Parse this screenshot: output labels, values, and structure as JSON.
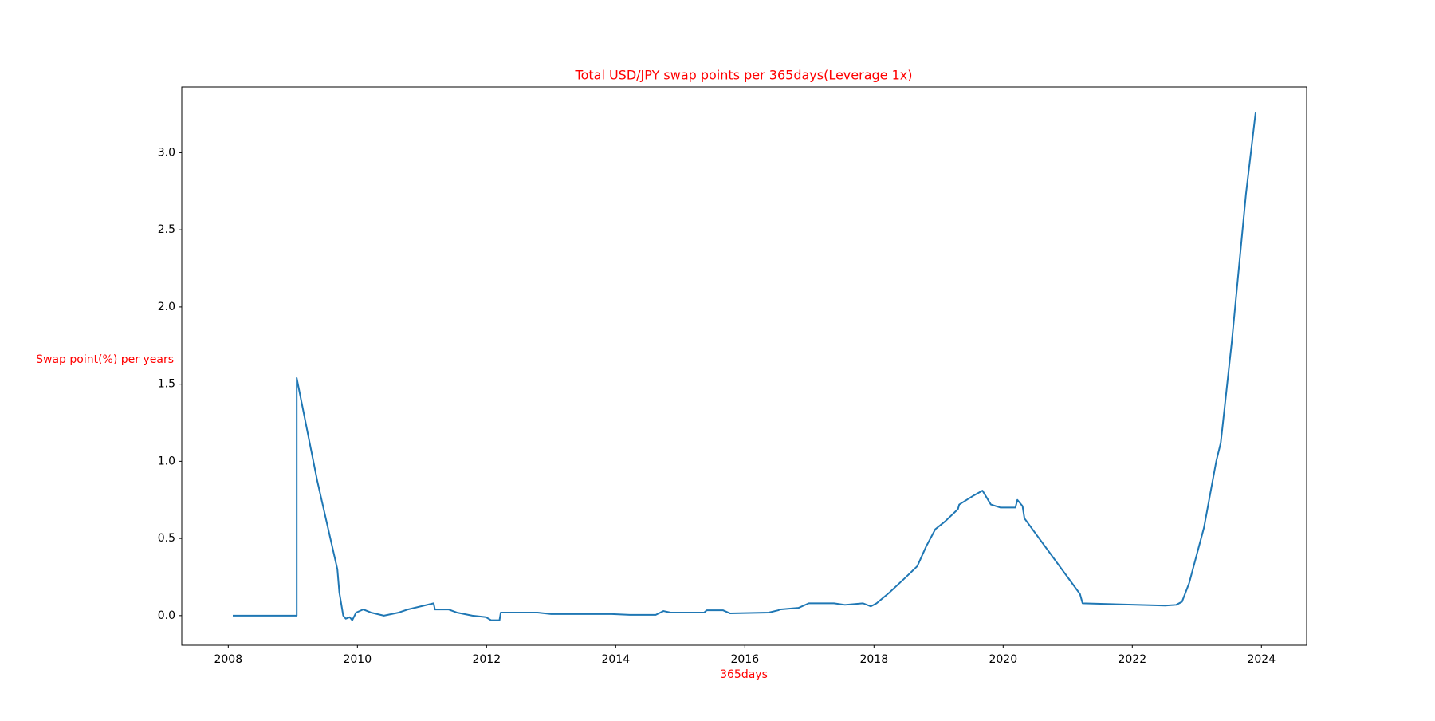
{
  "chart_data": {
    "type": "line",
    "title": "Total USD/JPY swap points per 365days(Leverage 1x)",
    "x_label": "365days",
    "y_label": "Swap point(%) per years",
    "label_color": "#ff0000",
    "x": [
      2008.07,
      2009.06,
      2009.06,
      2009.38,
      2009.69,
      2009.72,
      2009.78,
      2009.82,
      2009.88,
      2009.92,
      2009.98,
      2010.09,
      2010.21,
      2010.41,
      2010.64,
      2010.78,
      2011.18,
      2011.2,
      2011.41,
      2011.54,
      2011.78,
      2011.99,
      2012.07,
      2012.2,
      2012.22,
      2012.79,
      2013.0,
      2013.94,
      2014.22,
      2014.62,
      2014.74,
      2014.85,
      2015.37,
      2015.41,
      2015.66,
      2015.77,
      2016.37,
      2016.52,
      2016.54,
      2016.83,
      2016.99,
      2017.38,
      2017.55,
      2017.83,
      2017.95,
      2018.04,
      2018.24,
      2018.47,
      2018.67,
      2018.81,
      2018.95,
      2019.1,
      2019.3,
      2019.32,
      2019.55,
      2019.68,
      2019.81,
      2019.96,
      2020.19,
      2020.22,
      2020.3,
      2020.33,
      2021.19,
      2021.23,
      2022.51,
      2022.68,
      2022.77,
      2022.88,
      2023.11,
      2023.3,
      2023.37,
      2023.54,
      2023.76,
      2023.91
    ],
    "series": [
      {
        "color": "#1f77b4",
        "values": [
          0,
          0,
          1.54,
          0.87,
          0.3,
          0.15,
          0,
          -0.02,
          -0.01,
          -0.03,
          0.02,
          0.04,
          0.02,
          0,
          0.02,
          0.04,
          0.08,
          0.04,
          0.04,
          0.02,
          0,
          -0.01,
          -0.03,
          -0.03,
          0.02,
          0.02,
          0.01,
          0.01,
          0.005,
          0.005,
          0.03,
          0.02,
          0.02,
          0.035,
          0.035,
          0.015,
          0.02,
          0.035,
          0.04,
          0.05,
          0.08,
          0.08,
          0.07,
          0.08,
          0.06,
          0.08,
          0.15,
          0.24,
          0.32,
          0.45,
          0.56,
          0.61,
          0.69,
          0.72,
          0.78,
          0.81,
          0.72,
          0.7,
          0.7,
          0.75,
          0.71,
          0.63,
          0.14,
          0.08,
          0.065,
          0.07,
          0.09,
          0.21,
          0.57,
          1.0,
          1.12,
          1.77,
          2.73,
          3.26
        ]
      }
    ],
    "xlim": [
      2007.28,
      2024.7
    ],
    "xticks": [
      2008,
      2010,
      2012,
      2014,
      2016,
      2018,
      2020,
      2022,
      2024
    ],
    "ylim": [
      -0.192,
      3.426
    ],
    "yticks": [
      {
        "value": 0,
        "label": "0.0"
      },
      {
        "value": 0.5,
        "label": "0.5"
      },
      {
        "value": 1,
        "label": "1.0"
      },
      {
        "value": 1.5,
        "label": "1.5"
      },
      {
        "value": 2,
        "label": "2.0"
      },
      {
        "value": 2.5,
        "label": "2.5"
      },
      {
        "value": 3,
        "label": "3.0"
      }
    ],
    "grid": false
  }
}
